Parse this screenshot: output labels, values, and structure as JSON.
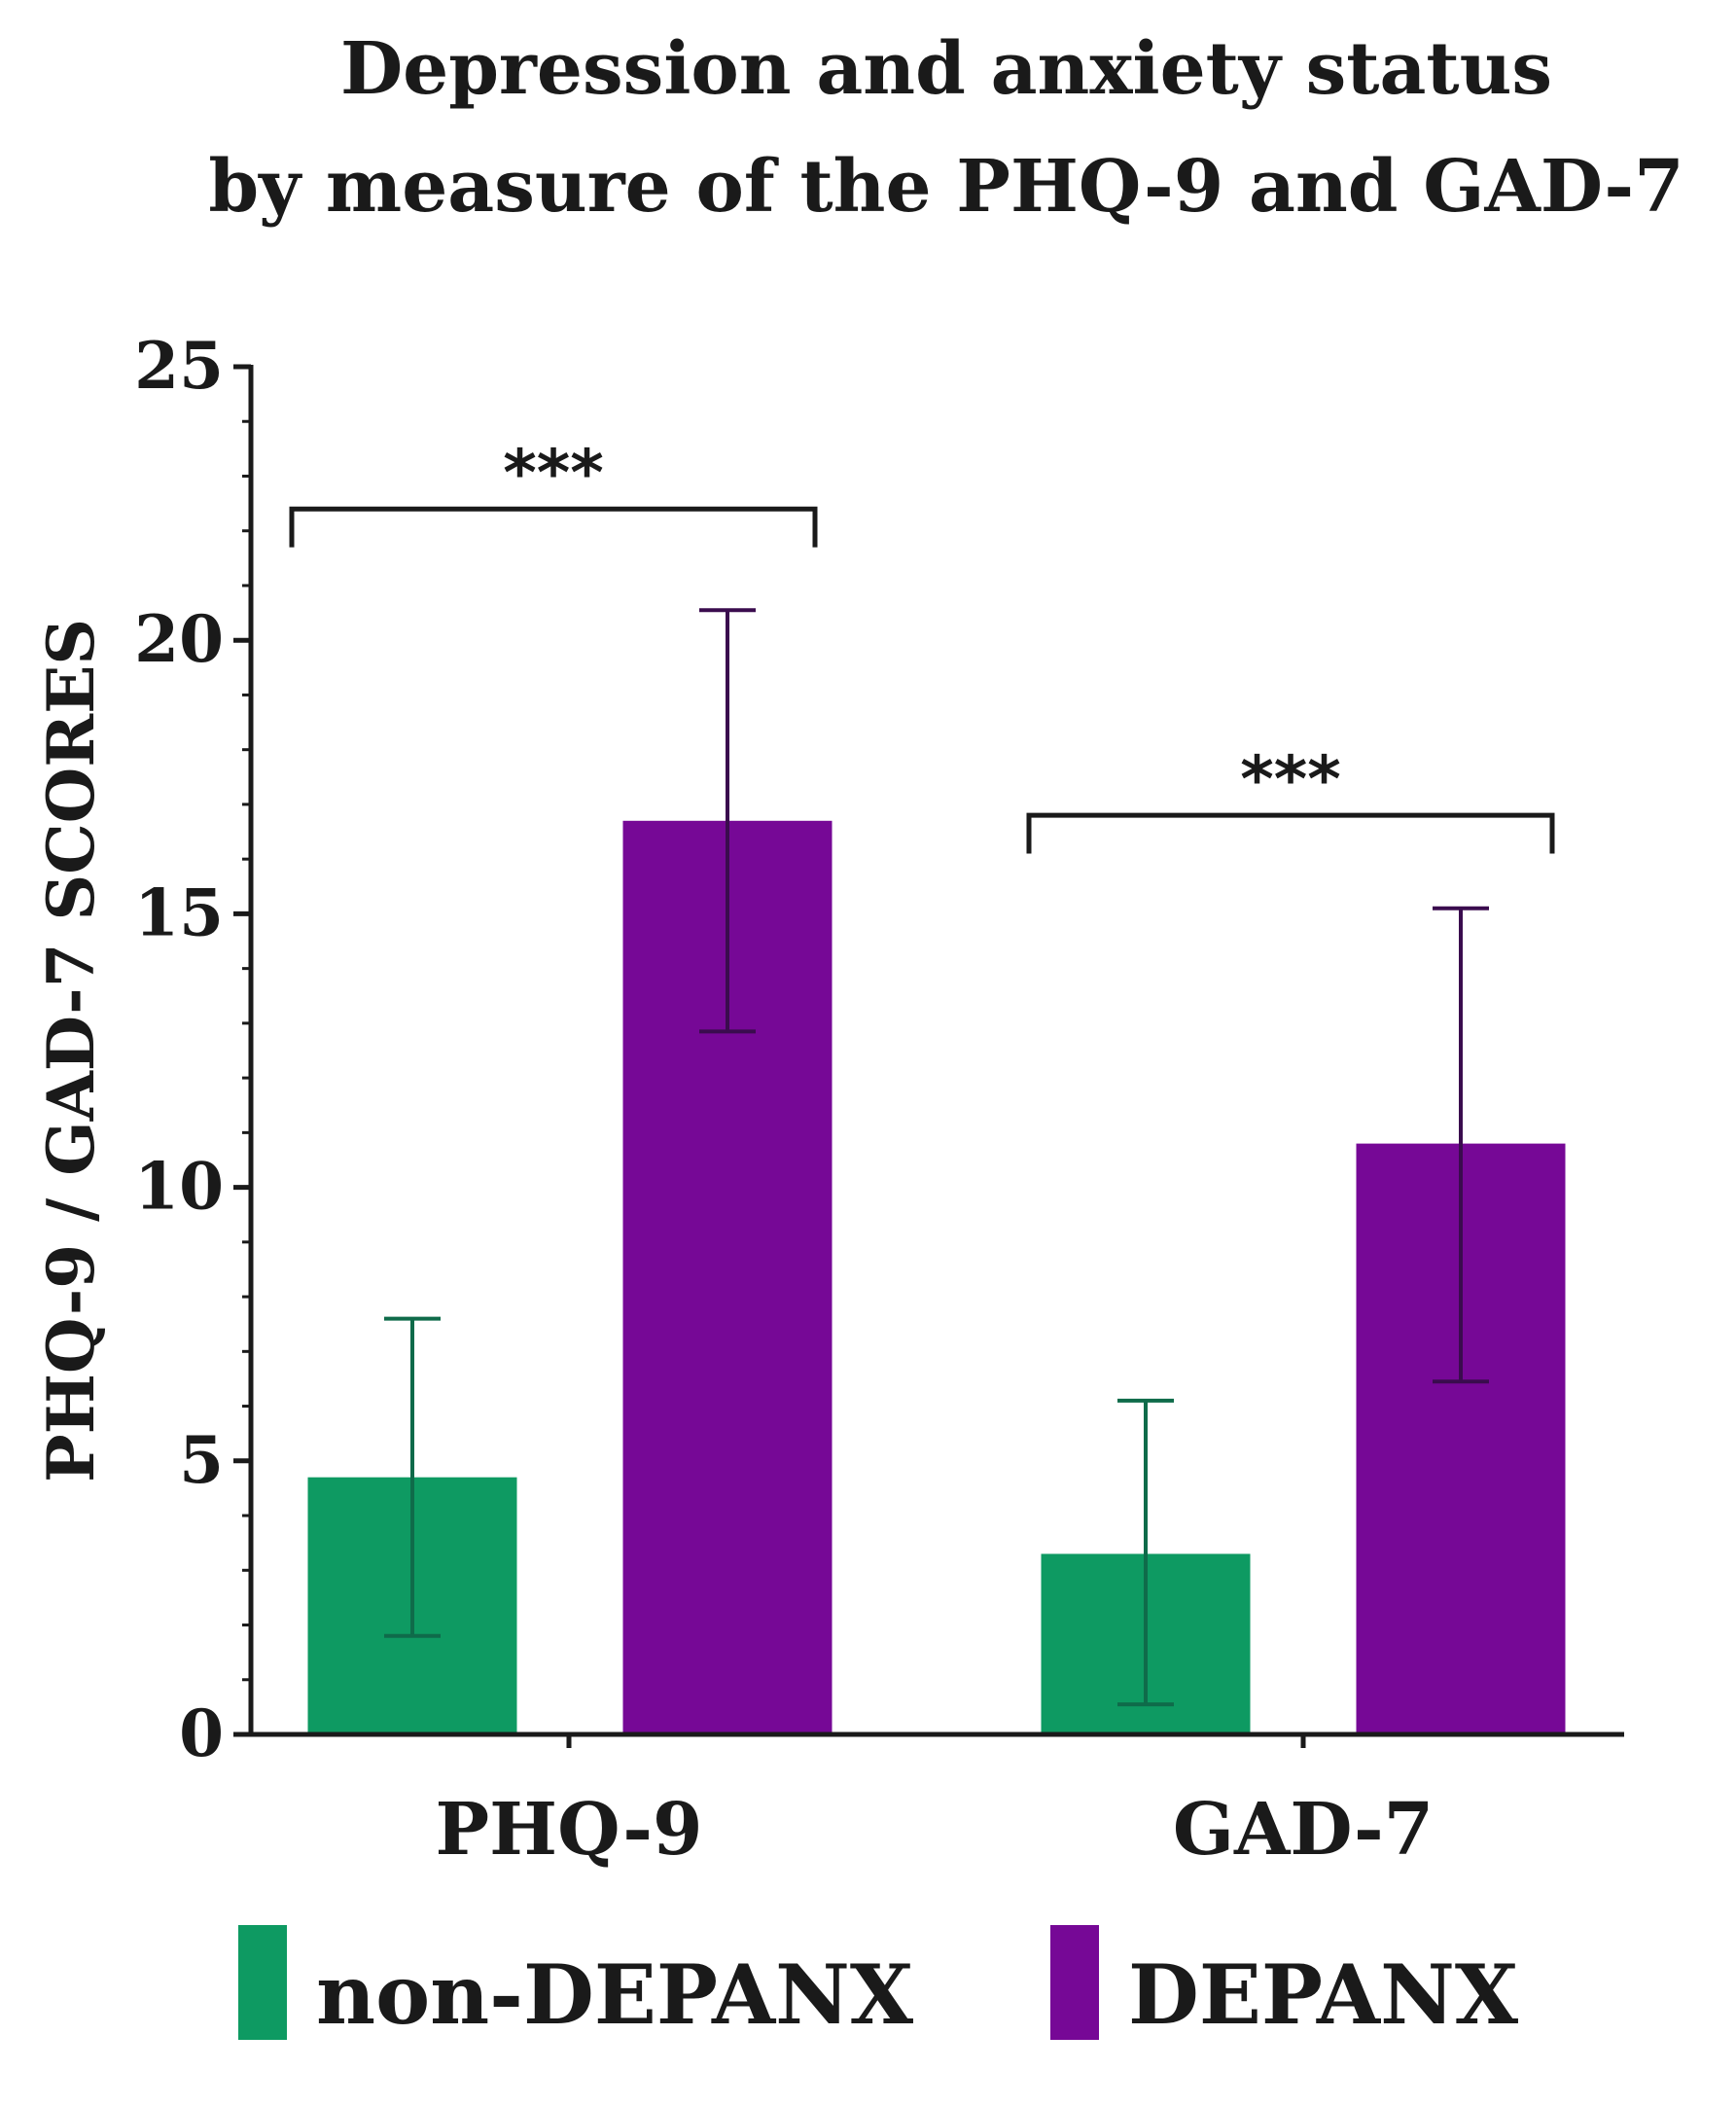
{
  "chart_data": {
    "type": "bar",
    "title": [
      "Depression and anxiety status",
      "by measure of the PHQ-9 and GAD-7"
    ],
    "xlabel": "",
    "ylabel": "PHQ-9 / GAD-7 SCORES",
    "ylim": [
      0,
      25
    ],
    "yticks": [
      0,
      5,
      10,
      15,
      20,
      25
    ],
    "ytick_labels": [
      "0",
      "5",
      "10",
      "15",
      "20",
      "25"
    ],
    "categories": [
      "PHQ-9",
      "GAD-7"
    ],
    "series": [
      {
        "name": "non-DEPANX",
        "color": "#0e9a62",
        "error_color": "#0f6b4a",
        "values": [
          4.7,
          3.3
        ],
        "err_low": [
          1.8,
          0.55
        ],
        "err_high": [
          7.6,
          6.1
        ]
      },
      {
        "name": "DEPANX",
        "color": "#760896",
        "error_color": "#3a0c4e",
        "values": [
          16.7,
          10.8
        ],
        "err_low": [
          12.85,
          6.45
        ],
        "err_high": [
          20.55,
          15.1
        ]
      }
    ],
    "significance": [
      {
        "label": "***",
        "category": "PHQ-9"
      },
      {
        "label": "***",
        "category": "GAD-7"
      }
    ],
    "legend": [
      "non-DEPANX",
      "DEPANX"
    ],
    "legend_position": "bottom",
    "grid": false
  }
}
